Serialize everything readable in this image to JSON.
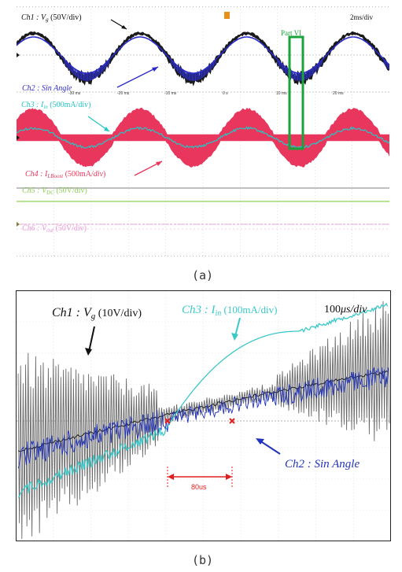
{
  "panel_a": {
    "caption": "(a)",
    "timebase": "2ms/div",
    "part_label": "Part VI",
    "x_ticks": [
      "-30 ms",
      "-20 ms",
      "-10 ms",
      "0 s",
      "10 ms",
      "20 ms"
    ],
    "ch_labels": {
      "ch1": {
        "name": "Ch1 : ",
        "var": "V",
        "sub": "g",
        "scale": " (50V/div)"
      },
      "ch2": {
        "name": "Ch2 : Sin Angle"
      },
      "ch3": {
        "name": "Ch3 : ",
        "var": "I",
        "sub": "in",
        "scale": " (500mA/div)"
      },
      "ch4": {
        "name": "Ch4 : ",
        "var": "I",
        "sub": "LBoost",
        "scale": " (500mA/",
        "scale2": "div",
        "scale3": ")"
      },
      "ch5": {
        "name": "Ch5 : ",
        "var": "V",
        "sub": "DC",
        "scale": " (50V/div)"
      },
      "ch6": {
        "name": "Ch6 : ",
        "var": "V",
        "sub": "out",
        "scale": " (50V/div)"
      }
    },
    "colors": {
      "ch1": "#111111",
      "ch2": "#2a2acc",
      "ch3": "#26c6c6",
      "ch4": "#e8365c",
      "ch5": "#8fcf5a",
      "ch6": "#e89ad6",
      "part": "#1aa33a"
    }
  },
  "panel_b": {
    "caption": "(b)",
    "timebase": "100",
    "timebase_unit": "μs/div",
    "interval_label": "80us",
    "ch_labels": {
      "ch1": {
        "name": "Ch1 : ",
        "var": "V",
        "sub": "g",
        "scale": " (10V/div)"
      },
      "ch3": {
        "name": "Ch3 : ",
        "var": "I",
        "sub": "in",
        "scale": " (100mA/div)"
      },
      "ch2": {
        "name": "Ch2 : Sin Angle"
      }
    },
    "colors": {
      "ch1": "#444444",
      "ch2": "#2233bb",
      "ch3": "#3cc8c8",
      "marker": "#e02020"
    }
  },
  "chart_data": [
    {
      "type": "line",
      "panel": "a",
      "x_unit": "ms",
      "xlim": [
        -40,
        30
      ],
      "series": [
        {
          "name": "Ch1 : Vg (50V/div)",
          "kind": "sine",
          "period_ms": 20,
          "amplitude_div": 1.7
        },
        {
          "name": "Ch2 : Sin Angle",
          "kind": "sine",
          "period_ms": 20,
          "amplitude_div": 1.2
        },
        {
          "name": "Ch3 : Iin (500mA/div)",
          "kind": "rectified-sine",
          "period_ms": 20
        },
        {
          "name": "Ch4 : ILBoost (500mA/div)",
          "kind": "sine-envelope",
          "period_ms": 20,
          "amplitude_div": 1.25
        },
        {
          "name": "Ch5 : VDC (50V/div)",
          "kind": "flat"
        },
        {
          "name": "Ch6 : Vout (50V/div)",
          "kind": "flat"
        }
      ]
    },
    {
      "type": "line",
      "panel": "b",
      "x_unit": "μs",
      "xlim": [
        0,
        1000
      ],
      "series": [
        {
          "name": "Ch1 : Vg (10V/div)",
          "kind": "noisy-ramp"
        },
        {
          "name": "Ch2 : Sin Angle",
          "kind": "noisy-ramp"
        },
        {
          "name": "Ch3 : Iin (100mA/div)",
          "kind": "s-curve"
        }
      ],
      "interval_us": 80
    }
  ]
}
